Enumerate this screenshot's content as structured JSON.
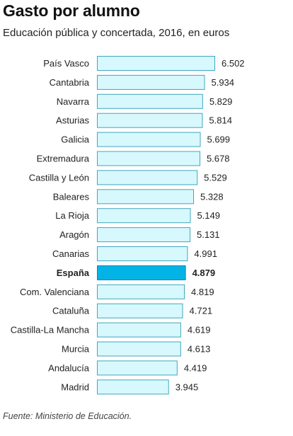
{
  "title": "Gasto por alumno",
  "subtitle": "Educación pública y concertada, 2016, en euros",
  "source": "Fuente: Ministerio de Educación.",
  "colors": {
    "bar_fill": "#d7f8fd",
    "bar_stroke": "#40a7be",
    "highlight_fill": "#03b3e6",
    "highlight_stroke": "#0389b3",
    "text": "#222222"
  },
  "chart_data": {
    "type": "bar",
    "orientation": "horizontal",
    "title": "Gasto por alumno",
    "subtitle": "Educación pública y concertada, 2016, en euros",
    "highlight": "España",
    "xlim": [
      0,
      6502
    ],
    "grid": false,
    "categories": [
      "País Vasco",
      "Cantabria",
      "Navarra",
      "Asturias",
      "Galicia",
      "Extremadura",
      "Castilla y León",
      "Baleares",
      "La Rioja",
      "Aragón",
      "Canarias",
      "España",
      "Com. Valenciana",
      "Cataluña",
      "Castilla-La Mancha",
      "Murcia",
      "Andalucía",
      "Madrid"
    ],
    "values": [
      6502,
      5934,
      5829,
      5814,
      5699,
      5678,
      5529,
      5328,
      5149,
      5131,
      4991,
      4879,
      4819,
      4721,
      4619,
      4613,
      4419,
      3945
    ],
    "value_labels": [
      "6.502",
      "5.934",
      "5.829",
      "5.814",
      "5.699",
      "5.678",
      "5.529",
      "5.328",
      "5.149",
      "5.131",
      "4.991",
      "4.879",
      "4.819",
      "4.721",
      "4.619",
      "4.613",
      "4.419",
      "3.945"
    ]
  }
}
